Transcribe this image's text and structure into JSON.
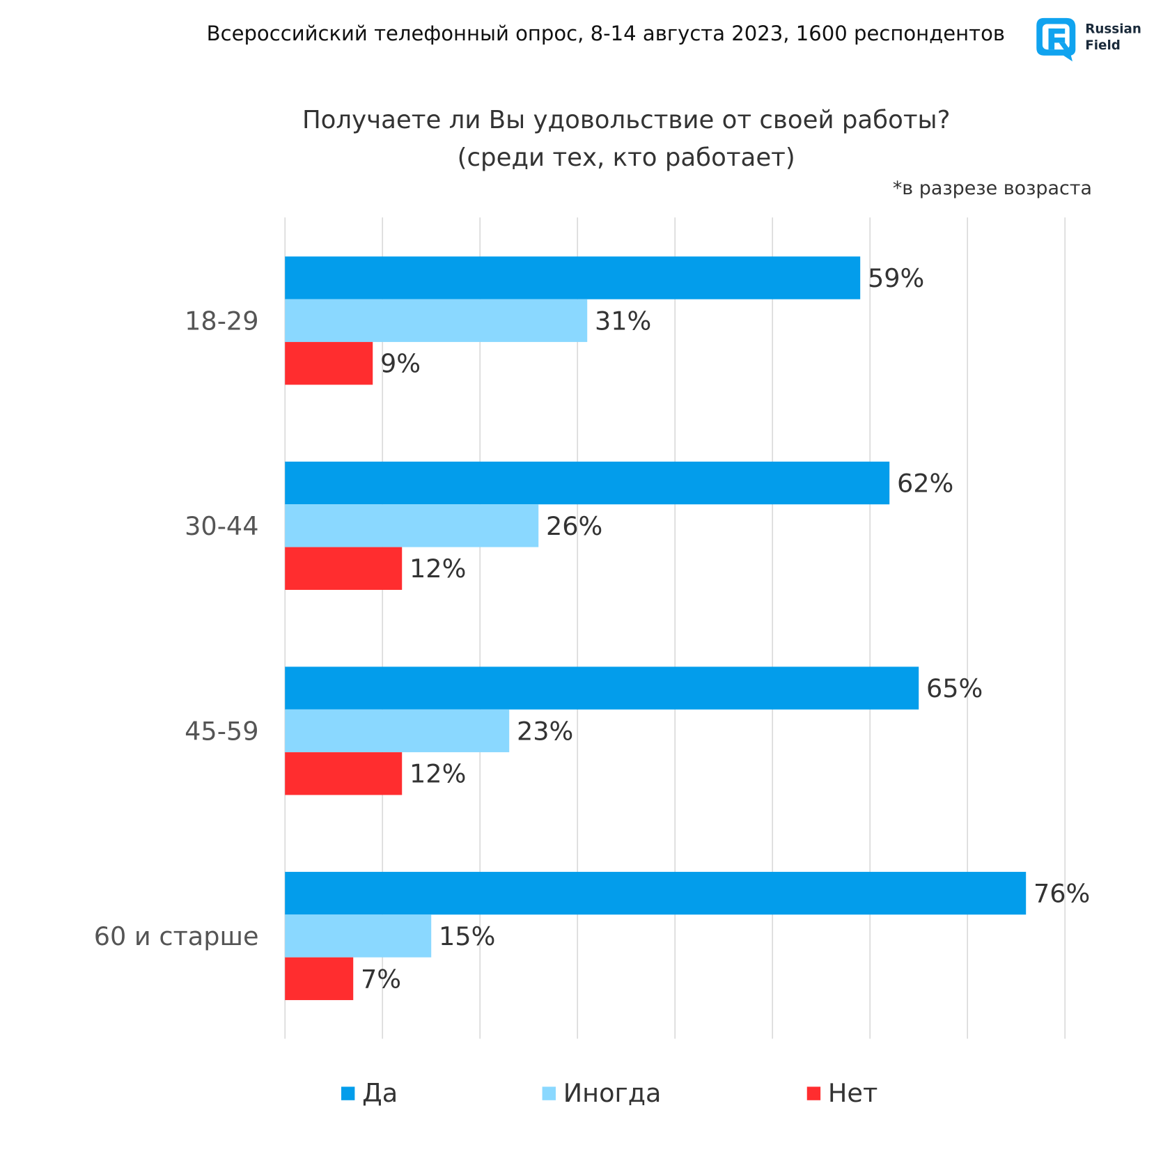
{
  "header": {
    "survey_info": "Всероссийский телефонный опрос, 8-14 августа 2023, 1600 респондентов",
    "logo_line1": "Russian",
    "logo_line2": "Field"
  },
  "chart_data": {
    "type": "bar",
    "orientation": "horizontal",
    "title": "Получаете ли Вы удовольствие от своей работы?",
    "subtitle": "(среди тех, кто работает)",
    "note": "*в разрезе возраста",
    "categories": [
      "18-29",
      "30-44",
      "45-59",
      "60 и старше"
    ],
    "series": [
      {
        "name": "Да",
        "color": "#039DEB",
        "values": [
          59,
          62,
          65,
          76
        ]
      },
      {
        "name": "Иногда",
        "color": "#8AD8FF",
        "values": [
          31,
          26,
          23,
          15
        ]
      },
      {
        "name": "Нет",
        "color": "#FF2D2F",
        "values": [
          9,
          12,
          12,
          7
        ]
      }
    ],
    "value_suffix": "%",
    "xlim": [
      0,
      80
    ],
    "grid_step": 10,
    "grid": true,
    "axis_tick_labels_shown": false,
    "legend_position": "bottom"
  }
}
